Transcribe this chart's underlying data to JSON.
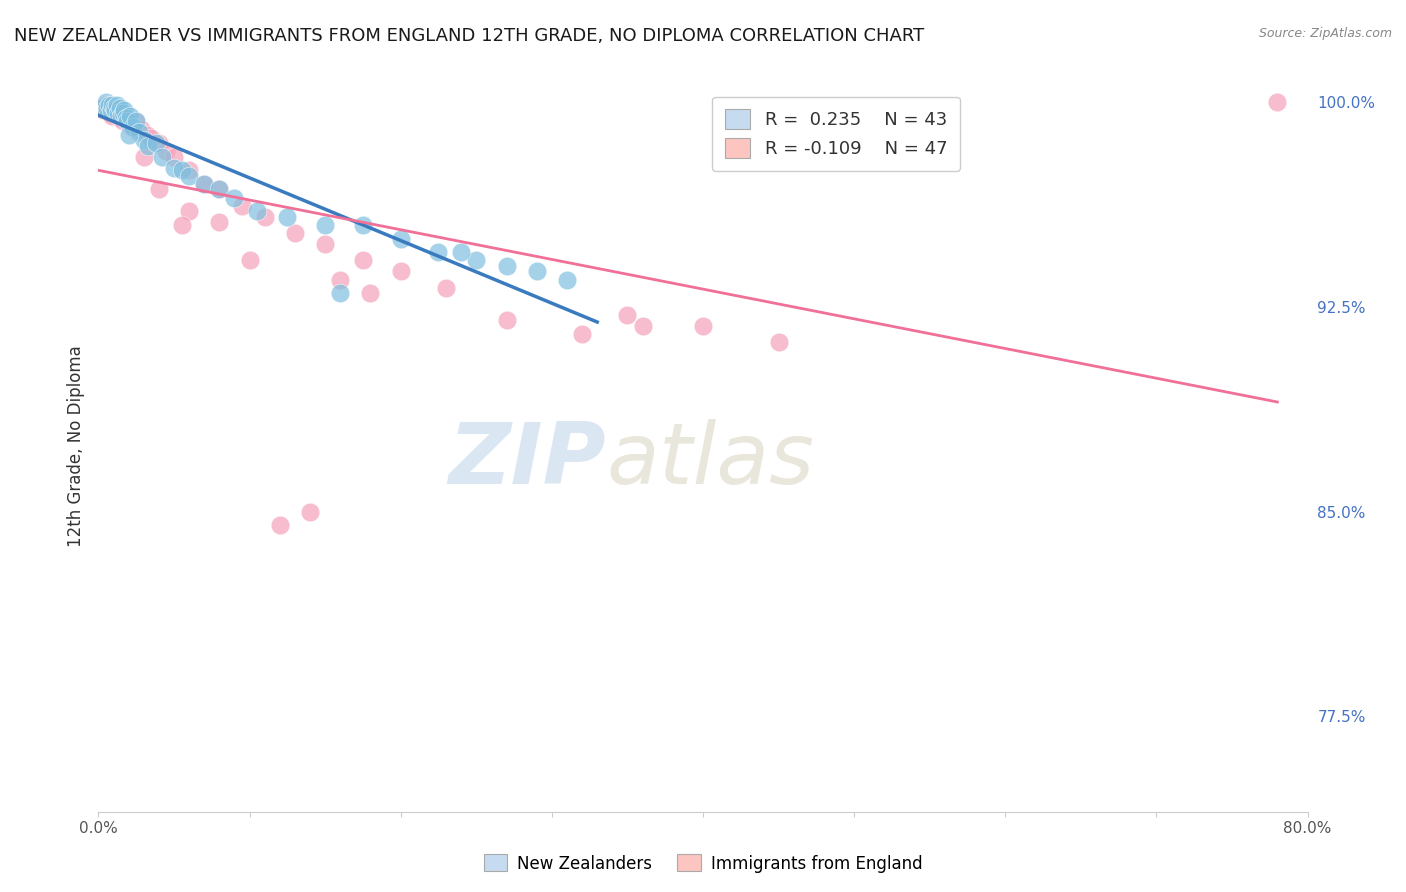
{
  "title": "NEW ZEALANDER VS IMMIGRANTS FROM ENGLAND 12TH GRADE, NO DIPLOMA CORRELATION CHART",
  "source": "Source: ZipAtlas.com",
  "ylabel": "12th Grade, No Diploma",
  "xlim": [
    0.0,
    0.8
  ],
  "ylim": [
    0.74,
    1.008
  ],
  "xticks": [
    0.0,
    0.1,
    0.2,
    0.3,
    0.4,
    0.5,
    0.6,
    0.7,
    0.8
  ],
  "xticklabels": [
    "0.0%",
    "",
    "",
    "",
    "",
    "",
    "",
    "",
    "80.0%"
  ],
  "yticks_right": [
    0.775,
    0.85,
    0.925,
    1.0
  ],
  "ytick_right_labels": [
    "77.5%",
    "85.0%",
    "92.5%",
    "100.0%"
  ],
  "legend_R1": "R =  0.235",
  "legend_N1": "N = 43",
  "legend_R2": "R = -0.109",
  "legend_N2": "N = 47",
  "blue_color": "#7fbfdf",
  "pink_color": "#f5a0b8",
  "blue_line_color": "#3a7abf",
  "pink_line_color": "#f07098",
  "legend_blue_fill": "#c6dbef",
  "legend_pink_fill": "#fcc5c0",
  "nz_x": [
    0.003,
    0.005,
    0.006,
    0.007,
    0.008,
    0.009,
    0.01,
    0.011,
    0.012,
    0.013,
    0.014,
    0.015,
    0.016,
    0.017,
    0.018,
    0.019,
    0.021,
    0.023,
    0.025,
    0.027,
    0.03,
    0.033,
    0.038,
    0.042,
    0.05,
    0.055,
    0.06,
    0.07,
    0.08,
    0.09,
    0.105,
    0.125,
    0.15,
    0.175,
    0.2,
    0.225,
    0.25,
    0.27,
    0.29,
    0.31,
    0.16,
    0.02,
    0.24
  ],
  "nz_y": [
    0.998,
    1.0,
    0.998,
    0.999,
    0.997,
    0.999,
    0.998,
    0.997,
    0.999,
    0.996,
    0.998,
    0.995,
    0.996,
    0.997,
    0.994,
    0.993,
    0.995,
    0.991,
    0.993,
    0.989,
    0.986,
    0.984,
    0.985,
    0.98,
    0.976,
    0.975,
    0.973,
    0.97,
    0.968,
    0.965,
    0.96,
    0.958,
    0.955,
    0.955,
    0.95,
    0.945,
    0.942,
    0.94,
    0.938,
    0.935,
    0.93,
    0.988,
    0.945
  ],
  "eng_x": [
    0.003,
    0.005,
    0.006,
    0.007,
    0.008,
    0.009,
    0.01,
    0.012,
    0.014,
    0.016,
    0.018,
    0.02,
    0.022,
    0.025,
    0.028,
    0.032,
    0.035,
    0.04,
    0.045,
    0.05,
    0.06,
    0.07,
    0.08,
    0.095,
    0.11,
    0.13,
    0.15,
    0.175,
    0.2,
    0.23,
    0.04,
    0.12,
    0.35,
    0.4,
    0.45,
    0.1,
    0.16,
    0.06,
    0.08,
    0.055,
    0.18,
    0.14,
    0.27,
    0.03,
    0.32,
    0.78,
    0.36
  ],
  "eng_y": [
    0.997,
    0.999,
    0.997,
    0.996,
    0.998,
    0.995,
    0.996,
    0.997,
    0.994,
    0.993,
    0.995,
    0.992,
    0.991,
    0.993,
    0.99,
    0.988,
    0.987,
    0.985,
    0.982,
    0.98,
    0.975,
    0.97,
    0.968,
    0.962,
    0.958,
    0.952,
    0.948,
    0.942,
    0.938,
    0.932,
    0.968,
    0.845,
    0.922,
    0.918,
    0.912,
    0.942,
    0.935,
    0.96,
    0.956,
    0.955,
    0.93,
    0.85,
    0.92,
    0.98,
    0.915,
    1.0,
    0.918
  ],
  "background_color": "#ffffff",
  "grid_color": "#e0e0e0",
  "watermark_zip": "ZIP",
  "watermark_atlas": "atlas",
  "figsize": [
    14.06,
    8.92
  ],
  "dpi": 100
}
